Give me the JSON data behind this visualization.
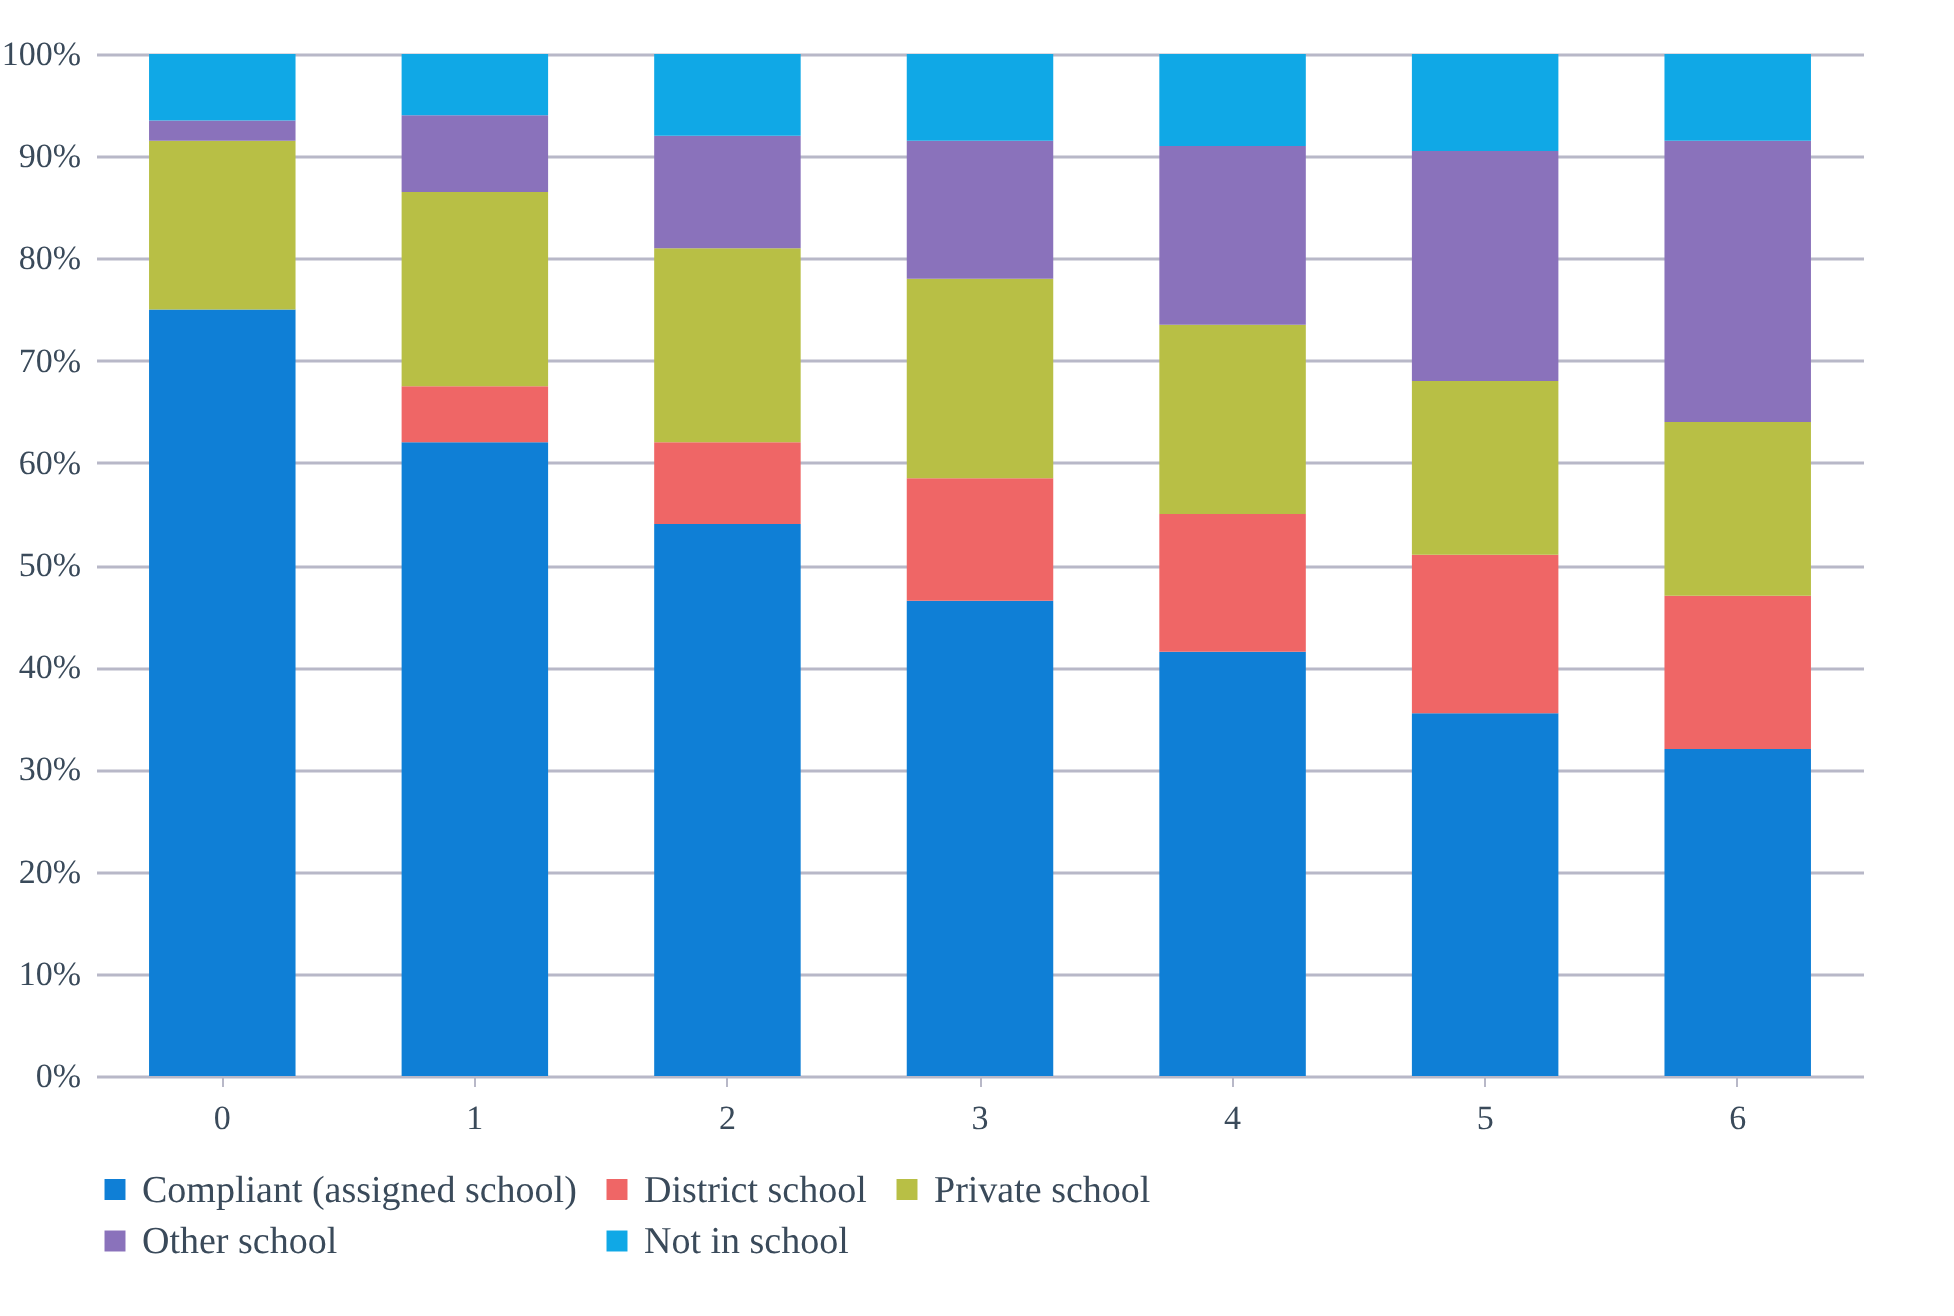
{
  "chart_data": {
    "type": "bar",
    "stacked": true,
    "categories": [
      "0",
      "1",
      "2",
      "3",
      "4",
      "5",
      "6"
    ],
    "series": [
      {
        "name": "Compliant (assigned school)",
        "color": "#0f7fd6",
        "values": [
          75,
          62,
          54,
          46.5,
          41.5,
          35.5,
          32
        ]
      },
      {
        "name": "District school",
        "color": "#ef6666",
        "values": [
          0,
          5.5,
          8,
          12,
          13.5,
          15.5,
          15
        ]
      },
      {
        "name": "Private school",
        "color": "#b8bf45",
        "values": [
          16.5,
          19,
          19,
          19.5,
          18.5,
          17,
          17
        ]
      },
      {
        "name": "Other school",
        "color": "#8a72bb",
        "values": [
          2,
          7.5,
          11,
          13.5,
          17.5,
          22.5,
          27.5
        ]
      },
      {
        "name": "Not in school",
        "color": "#10a8e6",
        "values": [
          6.5,
          6,
          8,
          8.5,
          9,
          9.5,
          8.5
        ]
      }
    ],
    "ylim": [
      0,
      100
    ],
    "yticks": [
      {
        "value": 0,
        "label": "0%"
      },
      {
        "value": 10,
        "label": "10%"
      },
      {
        "value": 20,
        "label": "20%"
      },
      {
        "value": 30,
        "label": "30%"
      },
      {
        "value": 40,
        "label": "40%"
      },
      {
        "value": 50,
        "label": "50%"
      },
      {
        "value": 60,
        "label": "60%"
      },
      {
        "value": 70,
        "label": "70%"
      },
      {
        "value": 80,
        "label": "80%"
      },
      {
        "value": 90,
        "label": "90%"
      },
      {
        "value": 100,
        "label": "100%"
      }
    ],
    "grid": "y",
    "legend": "bottom"
  }
}
